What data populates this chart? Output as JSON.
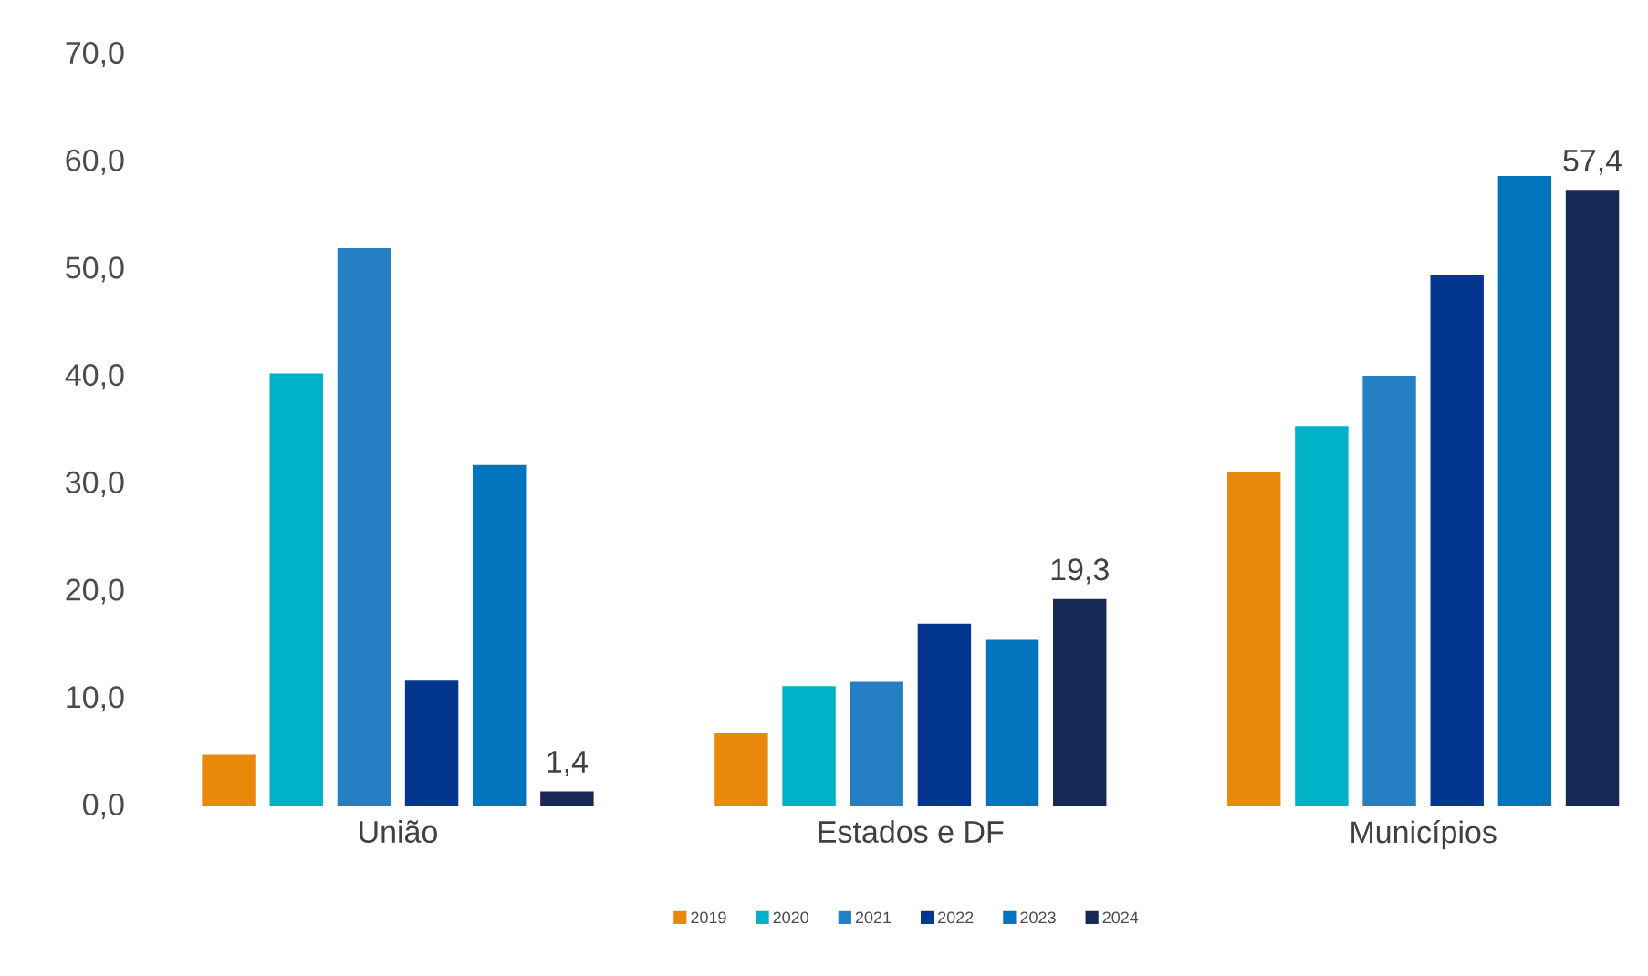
{
  "chart_data": {
    "type": "bar",
    "categories": [
      "União",
      "Estados e DF",
      "Municípios"
    ],
    "series": [
      {
        "name": "2019",
        "color": "#e8890c",
        "values": [
          4.8,
          6.8,
          31.1
        ]
      },
      {
        "name": "2020",
        "color": "#00b2c8",
        "values": [
          40.3,
          11.2,
          35.4
        ]
      },
      {
        "name": "2021",
        "color": "#2580c3",
        "values": [
          52.0,
          11.6,
          40.1
        ]
      },
      {
        "name": "2022",
        "color": "#03368f",
        "values": [
          11.7,
          17.0,
          49.5
        ]
      },
      {
        "name": "2023",
        "color": "#0074bc",
        "values": [
          31.8,
          15.5,
          58.7
        ]
      },
      {
        "name": "2024",
        "color": "#172855",
        "values": [
          1.4,
          19.3,
          57.4
        ],
        "value_labels": [
          "1,4",
          "19,3",
          "57,4"
        ]
      }
    ],
    "ylim": [
      0,
      70
    ],
    "yticks": [
      {
        "value": 0,
        "label": "0,0"
      },
      {
        "value": 10,
        "label": "10,0"
      },
      {
        "value": 20,
        "label": "20,0"
      },
      {
        "value": 30,
        "label": "30,0"
      },
      {
        "value": 40,
        "label": "40,0"
      },
      {
        "value": 50,
        "label": "50,0"
      },
      {
        "value": 60,
        "label": "60,0"
      },
      {
        "value": 70,
        "label": "70,0"
      }
    ],
    "grid": false,
    "legend": "bottom"
  }
}
